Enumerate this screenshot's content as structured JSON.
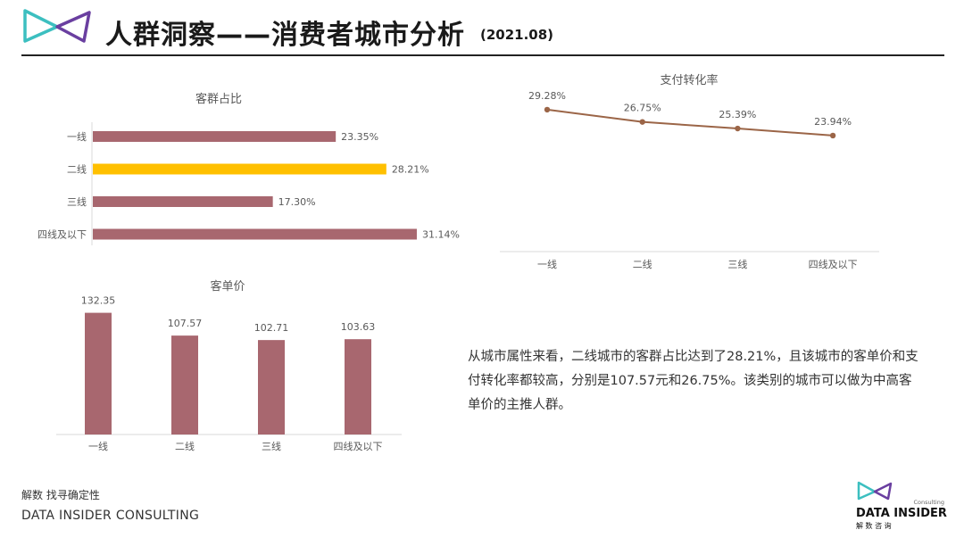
{
  "header": {
    "title": "人群洞察——消费者城市分析",
    "subtitle": "(2021.08)"
  },
  "colors": {
    "bar": "#a8676f",
    "highlight": "#ffc000",
    "line": "#9b6547",
    "axis": "#d9d9d9",
    "label": "#595959"
  },
  "chart_data": [
    {
      "type": "bar",
      "orientation": "horizontal",
      "title": "客群占比",
      "categories": [
        "一线",
        "二线",
        "三线",
        "四线及以下"
      ],
      "values": [
        23.35,
        28.21,
        17.3,
        31.14
      ],
      "data_labels": [
        "23.35%",
        "28.21%",
        "17.30%",
        "31.14%"
      ],
      "highlight_category": "二线",
      "xlim": [
        0,
        32
      ]
    },
    {
      "type": "line",
      "title": "支付转化率",
      "categories": [
        "一线",
        "二线",
        "三线",
        "四线及以下"
      ],
      "values": [
        29.28,
        26.75,
        25.39,
        23.94
      ],
      "data_labels": [
        "29.28%",
        "26.75%",
        "25.39%",
        "23.94%"
      ],
      "ylim": [
        0,
        30
      ]
    },
    {
      "type": "bar",
      "orientation": "vertical",
      "title": "客单价",
      "categories": [
        "一线",
        "二线",
        "三线",
        "四线及以下"
      ],
      "values": [
        132.35,
        107.57,
        102.71,
        103.63
      ],
      "data_labels": [
        "132.35",
        "107.57",
        "102.71",
        "103.63"
      ],
      "ylim": [
        0,
        140
      ]
    }
  ],
  "insight": {
    "text": "从城市属性来看，二线城市的客群占比达到了28.21%，且该城市的客单价和支付转化率都较高，分别是107.57元和26.75%。该类别的城市可以做为中高客单价的主推人群。"
  },
  "footer": {
    "tagline": "解数 找寻确定性",
    "company": "DATA INSIDER CONSULTING"
  },
  "brand": {
    "small": "Consulting",
    "name": "DATA INSIDER",
    "cn": "解 数 咨 询"
  }
}
